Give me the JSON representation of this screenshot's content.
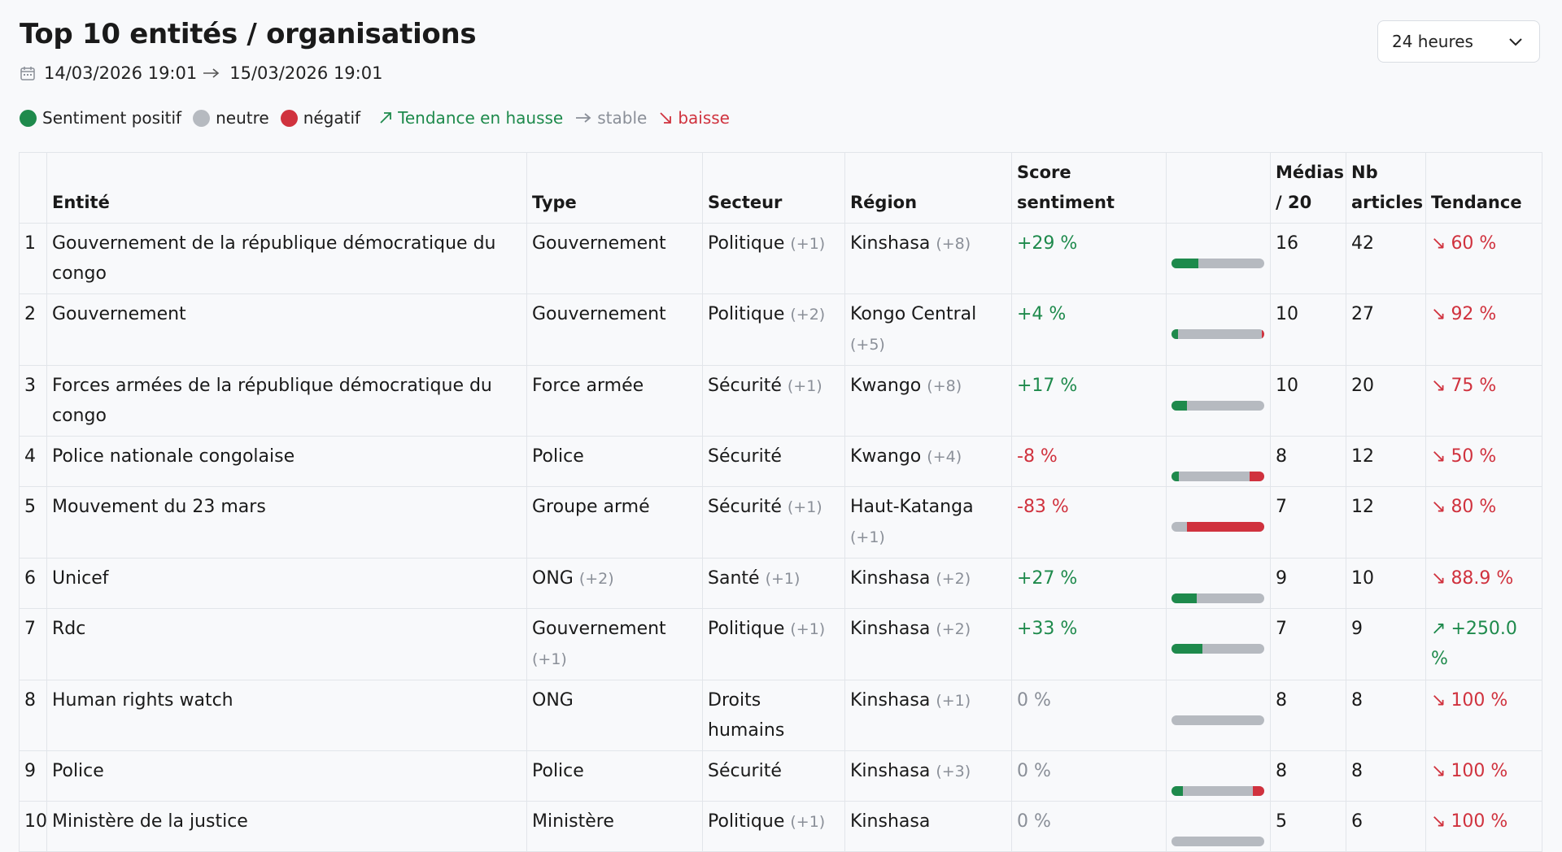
{
  "page": {
    "title": "Top 10 entités / organisations",
    "date_from": "14/03/2026 19:01",
    "date_to": "15/03/2026 19:01",
    "range_value": "24 heures"
  },
  "legend": {
    "positive": "Sentiment positif",
    "neutral": "neutre",
    "negative": "négatif",
    "trend_up": "Tendance en hausse",
    "trend_stable": "stable",
    "trend_down": "baisse"
  },
  "colors": {
    "positive": "#1e8a4c",
    "neutral": "#b6bac0",
    "negative": "#d0323e"
  },
  "table": {
    "headers": {
      "rank": "",
      "entity": "Entité",
      "type": "Type",
      "sector": "Secteur",
      "region": "Région",
      "score": "Score sentiment",
      "bar": "",
      "media": "Médias / 20",
      "articles": "Nb articles",
      "trend": "Tendance"
    },
    "rows": [
      {
        "rank": "1",
        "entity": "Gouvernement de la république démocratique du congo",
        "type": "Gouvernement",
        "type_extra": "",
        "sector": "Politique",
        "sector_extra": "(+1)",
        "region": "Kinshasa",
        "region_extra": "(+8)",
        "score": "+29 %",
        "score_tone": "pos",
        "pos_share": 0.29,
        "neg_share": 0,
        "media": "16",
        "articles": "42",
        "trend": "60 %",
        "trend_dir": "down"
      },
      {
        "rank": "2",
        "entity": "Gouvernement",
        "type": "Gouvernement",
        "type_extra": "",
        "sector": "Politique",
        "sector_extra": "(+2)",
        "region": "Kongo Central",
        "region_extra": "(+5)",
        "score": "+4 %",
        "score_tone": "pos",
        "pos_share": 0.07,
        "neg_share": 0.03,
        "media": "10",
        "articles": "27",
        "trend": "92 %",
        "trend_dir": "down"
      },
      {
        "rank": "3",
        "entity": "Forces armées de la république démocratique du congo",
        "type": "Force armée",
        "type_extra": "",
        "sector": "Sécurité",
        "sector_extra": "(+1)",
        "region": "Kwango",
        "region_extra": "(+8)",
        "score": "+17 %",
        "score_tone": "pos",
        "pos_share": 0.17,
        "neg_share": 0,
        "media": "10",
        "articles": "20",
        "trend": "75 %",
        "trend_dir": "down"
      },
      {
        "rank": "4",
        "entity": "Police nationale congolaise",
        "type": "Police",
        "type_extra": "",
        "sector": "Sécurité",
        "sector_extra": "",
        "region": "Kwango",
        "region_extra": "(+4)",
        "score": "-8 %",
        "score_tone": "neg",
        "pos_share": 0.08,
        "neg_share": 0.16,
        "media": "8",
        "articles": "12",
        "trend": "50 %",
        "trend_dir": "down"
      },
      {
        "rank": "5",
        "entity": "Mouvement du 23 mars",
        "type": "Groupe armé",
        "type_extra": "",
        "sector": "Sécurité",
        "sector_extra": "(+1)",
        "region": "Haut-Katanga",
        "region_extra": "(+1)",
        "score": "-83 %",
        "score_tone": "neg",
        "pos_share": 0,
        "neg_share": 0.83,
        "media": "7",
        "articles": "12",
        "trend": "80 %",
        "trend_dir": "down"
      },
      {
        "rank": "6",
        "entity": "Unicef",
        "type": "ONG",
        "type_extra": "(+2)",
        "sector": "Santé",
        "sector_extra": "(+1)",
        "region": "Kinshasa",
        "region_extra": "(+2)",
        "score": "+27 %",
        "score_tone": "pos",
        "pos_share": 0.27,
        "neg_share": 0,
        "media": "9",
        "articles": "10",
        "trend": "88.9 %",
        "trend_dir": "down"
      },
      {
        "rank": "7",
        "entity": "Rdc",
        "type": "Gouvernement",
        "type_extra": "(+1)",
        "sector": "Politique",
        "sector_extra": "(+1)",
        "region": "Kinshasa",
        "region_extra": "(+2)",
        "score": "+33 %",
        "score_tone": "pos",
        "pos_share": 0.33,
        "neg_share": 0,
        "media": "7",
        "articles": "9",
        "trend": "+250.0 %",
        "trend_dir": "up"
      },
      {
        "rank": "8",
        "entity": "Human rights watch",
        "type": "ONG",
        "type_extra": "",
        "sector": "Droits humains",
        "sector_extra": "",
        "region": "Kinshasa",
        "region_extra": "(+1)",
        "score": "0 %",
        "score_tone": "neu",
        "pos_share": 0,
        "neg_share": 0,
        "media": "8",
        "articles": "8",
        "trend": "100 %",
        "trend_dir": "down"
      },
      {
        "rank": "9",
        "entity": "Police",
        "type": "Police",
        "type_extra": "",
        "sector": "Sécurité",
        "sector_extra": "",
        "region": "Kinshasa",
        "region_extra": "(+3)",
        "score": "0 %",
        "score_tone": "neu",
        "pos_share": 0.12,
        "neg_share": 0.12,
        "media": "8",
        "articles": "8",
        "trend": "100 %",
        "trend_dir": "down"
      },
      {
        "rank": "10",
        "entity": "Ministère de la justice",
        "type": "Ministère",
        "type_extra": "",
        "sector": "Politique",
        "sector_extra": "(+1)",
        "region": "Kinshasa",
        "region_extra": "",
        "score": "0 %",
        "score_tone": "neu",
        "pos_share": 0,
        "neg_share": 0,
        "media": "5",
        "articles": "6",
        "trend": "100 %",
        "trend_dir": "down"
      }
    ]
  }
}
